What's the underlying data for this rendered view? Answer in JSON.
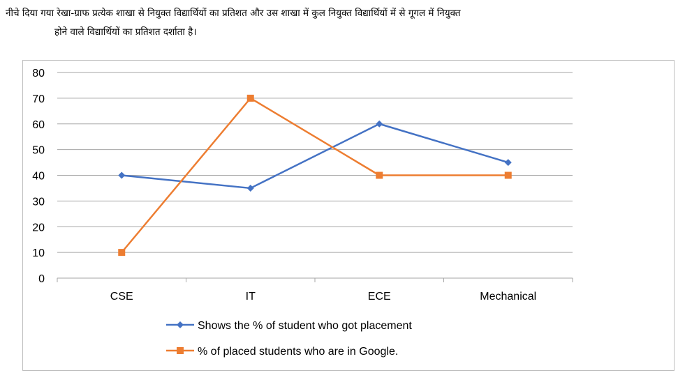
{
  "question": {
    "line1": "नीचे दिया गया रेखा-ग्राफ प्रत्येक शाखा से नियुक्त विद्यार्थियों का प्रतिशत और उस शाखा में कुल नियुक्त विद्यार्थियों में से गूगल में नियुक्त",
    "line2": "होने   वाले विद्यार्थियों का प्रतिशत दर्शाता है।"
  },
  "chart_data": {
    "type": "line",
    "categories": [
      "CSE",
      "IT",
      "ECE",
      "Mechanical"
    ],
    "ylim": [
      0,
      80
    ],
    "yticks": [
      0,
      10,
      20,
      30,
      40,
      50,
      60,
      70,
      80
    ],
    "grid": true,
    "legend_position": "bottom",
    "series": [
      {
        "name": "Shows the % of student who got placement",
        "values": [
          40,
          35,
          60,
          45
        ],
        "color": "#4472c4",
        "marker": "diamond"
      },
      {
        "name": "% of placed students who are in Google.",
        "values": [
          10,
          70,
          40,
          40
        ],
        "color": "#ed7d31",
        "marker": "square"
      }
    ]
  }
}
